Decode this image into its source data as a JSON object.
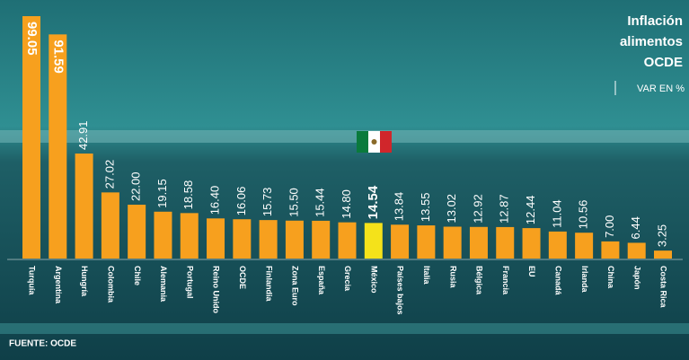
{
  "chart_data": {
    "type": "bar",
    "title": "Inflación alimentos OCDE",
    "subtitle": "VAR EN %",
    "source": "FUENTE: OCDE",
    "categories": [
      "Turquía",
      "Argentina",
      "Hungría",
      "Colombia",
      "Chile",
      "Alemania",
      "Portugal",
      "Reino Unido",
      "OCDE",
      "Finlandia",
      "Zona Euro",
      "España",
      "Grecia",
      "México",
      "Países bajos",
      "Italia",
      "Rusia",
      "Bélgica",
      "Francia",
      "EU",
      "Canadá",
      "Irlanda",
      "China",
      "Japón",
      "Costa Rica"
    ],
    "values": [
      99.05,
      91.59,
      42.91,
      27.02,
      22.0,
      19.15,
      18.58,
      16.4,
      16.06,
      15.73,
      15.5,
      15.44,
      14.8,
      14.54,
      13.84,
      13.55,
      13.02,
      12.92,
      12.87,
      12.44,
      11.04,
      10.56,
      7.0,
      6.44,
      3.25
    ],
    "value_labels": [
      "99.05",
      "91.59",
      "42.91",
      "27.02",
      "22.00",
      "19.15",
      "18.58",
      "16.40",
      "16.06",
      "15.73",
      "15.50",
      "15.44",
      "14.80",
      "14.54",
      "13.84",
      "13.55",
      "13.02",
      "12.92",
      "12.87",
      "12.44",
      "11.04",
      "10.56",
      "7.00",
      "6.44",
      "3.25"
    ],
    "colors": [
      "#f7a01e",
      "#f7a01e",
      "#f7a01e",
      "#f7a01e",
      "#f7a01e",
      "#f7a01e",
      "#f7a01e",
      "#f7a01e",
      "#f7a01e",
      "#f7a01e",
      "#f7a01e",
      "#f7a01e",
      "#f7a01e",
      "#f4e21a",
      "#f7a01e",
      "#f7a01e",
      "#f7a01e",
      "#f7a01e",
      "#f7a01e",
      "#f7a01e",
      "#f7a01e",
      "#f7a01e",
      "#f7a01e",
      "#f7a01e",
      "#f7a01e"
    ]
  }
}
